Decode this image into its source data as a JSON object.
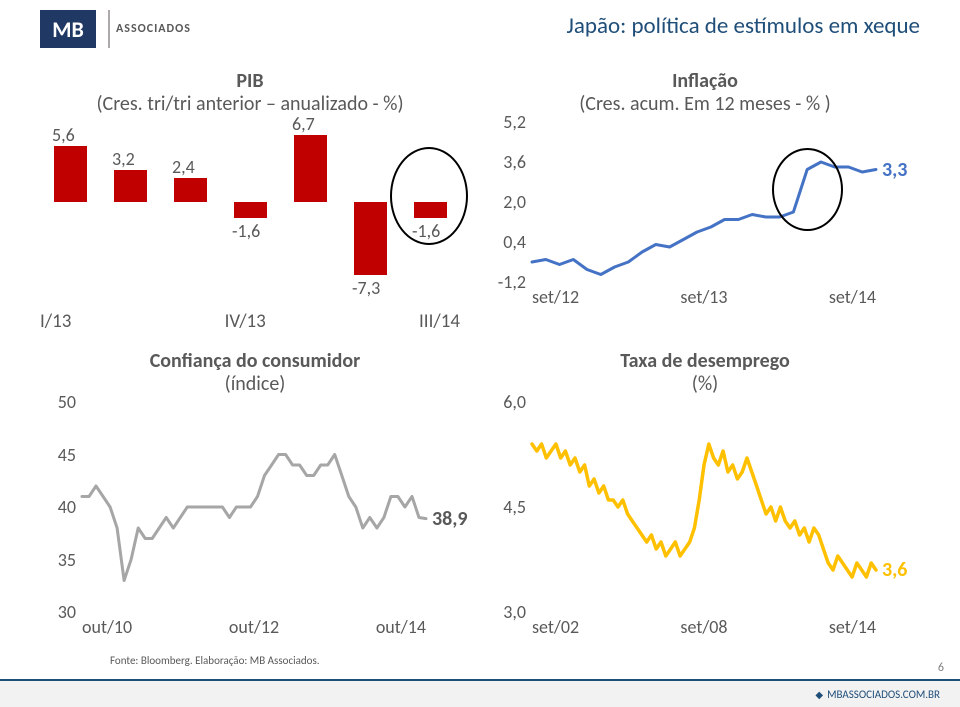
{
  "logo": {
    "initials": "MB",
    "sub": "ASSOCIADOS"
  },
  "slide_title": "Japão: política de estímulos em xeque",
  "source": "Fonte: Bloomberg. Elaboração: MB Associados.",
  "page_number": "6",
  "footer_link": "MBASSOCIADOS.COM.BR",
  "charts": {
    "pib": {
      "type": "bar",
      "title_strong": "PIB",
      "title_rest": "(Cres. tri/tri anterior – anualizado - %)",
      "categories": [
        "I/13",
        "",
        "",
        "IV/13",
        "",
        "",
        "III/14"
      ],
      "x_visible": [
        "I/13",
        "IV/13",
        "III/14"
      ],
      "values": [
        5.6,
        3.2,
        2.4,
        -1.6,
        6.7,
        -7.3,
        -1.6
      ],
      "data_labels": [
        "5,6",
        "3,2",
        "2,4",
        "-1,6",
        "6,7",
        "-7,3",
        "-1,6"
      ],
      "bar_color": "#c00000",
      "bar_width": 0.55,
      "ylim": [
        -8,
        8
      ],
      "text_color": "#595959",
      "circle_index": 6,
      "title_fontsize": 19,
      "label_fontsize": 18
    },
    "inflacao": {
      "type": "line",
      "title_strong": "Inflação",
      "title_rest": "(Cres. acum. Em 12 meses - % )",
      "x_labels": [
        "set/12",
        "set/13",
        "set/14"
      ],
      "yticks": [
        "-1,2",
        "0,4",
        "2,0",
        "3,6",
        "5,2"
      ],
      "ylim": [
        -1.2,
        5.2
      ],
      "line_color": "#4472c4",
      "line_width": 3,
      "end_label": "3,3",
      "end_label_color": "#4472c4",
      "series": [
        -0.4,
        -0.3,
        -0.5,
        -0.3,
        -0.7,
        -0.9,
        -0.6,
        -0.4,
        0.0,
        0.3,
        0.2,
        0.5,
        0.8,
        1.0,
        1.3,
        1.3,
        1.5,
        1.4,
        1.4,
        1.6,
        3.3,
        3.6,
        3.4,
        3.4,
        3.2,
        3.3
      ],
      "circle_range": [
        18,
        22
      ]
    },
    "confianca": {
      "type": "line",
      "title_strong": "Confiança do consumidor",
      "title_rest": "(índice)",
      "x_labels": [
        "out/10",
        "out/12",
        "out/14"
      ],
      "yticks": [
        "30",
        "35",
        "40",
        "45",
        "50"
      ],
      "ylim": [
        30,
        50
      ],
      "line_color": "#a6a6a6",
      "line_width": 3,
      "end_label": "38,9",
      "end_label_color": "#595959",
      "series": [
        41,
        41,
        42,
        41,
        40,
        38,
        33,
        35,
        38,
        37,
        37,
        38,
        39,
        38,
        39,
        40,
        40,
        40,
        40,
        40,
        40,
        39,
        40,
        40,
        40,
        41,
        43,
        44,
        45,
        45,
        44,
        44,
        43,
        43,
        44,
        44,
        45,
        43,
        41,
        40,
        38,
        39,
        38,
        39,
        41,
        41,
        40,
        41,
        39,
        38.9
      ]
    },
    "desemprego": {
      "type": "line",
      "title_strong": "Taxa de desemprego",
      "title_rest": "(%)",
      "x_labels": [
        "set/02",
        "set/08",
        "set/14"
      ],
      "yticks": [
        "3,0",
        "4,5",
        "6,0"
      ],
      "ylim": [
        3.0,
        6.0
      ],
      "line_color": "#ffc000",
      "line_width": 3.5,
      "end_label": "3,6",
      "end_label_color": "#ffc000",
      "series": [
        5.4,
        5.3,
        5.4,
        5.2,
        5.3,
        5.4,
        5.2,
        5.3,
        5.1,
        5.2,
        5.0,
        5.1,
        4.8,
        4.9,
        4.7,
        4.8,
        4.6,
        4.6,
        4.5,
        4.6,
        4.4,
        4.3,
        4.2,
        4.1,
        4.0,
        4.1,
        3.9,
        4.0,
        3.8,
        3.9,
        4.0,
        3.8,
        3.9,
        4.0,
        4.2,
        4.6,
        5.1,
        5.4,
        5.2,
        5.1,
        5.3,
        5.0,
        5.1,
        4.9,
        5.0,
        5.2,
        5.0,
        4.8,
        4.6,
        4.4,
        4.5,
        4.3,
        4.5,
        4.3,
        4.2,
        4.3,
        4.1,
        4.2,
        4.0,
        4.2,
        4.1,
        3.9,
        3.7,
        3.6,
        3.8,
        3.7,
        3.6,
        3.5,
        3.7,
        3.6,
        3.5,
        3.7,
        3.6
      ]
    }
  }
}
